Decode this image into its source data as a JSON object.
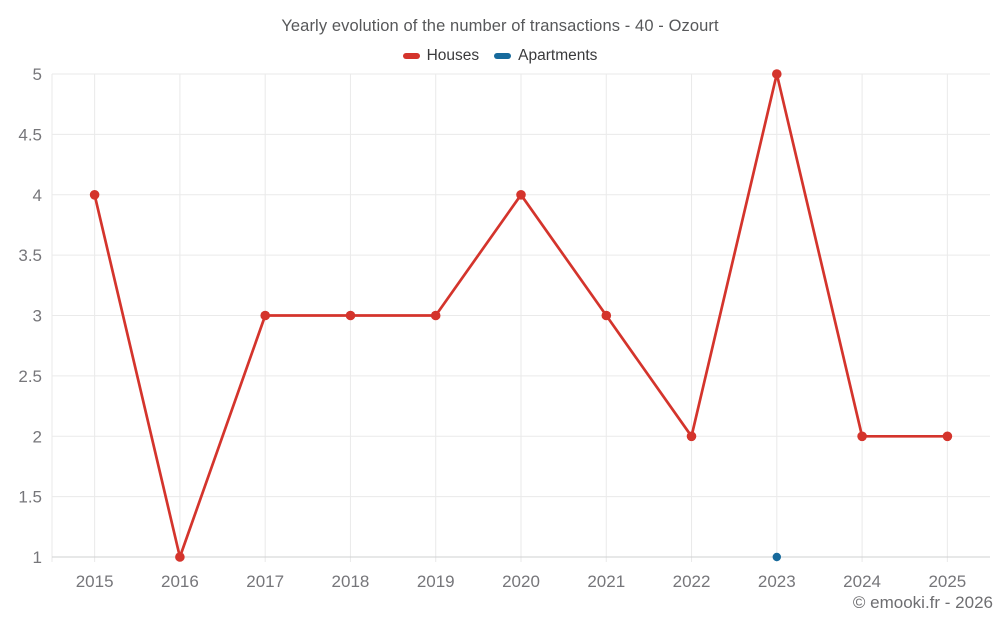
{
  "page": {
    "title": "Yearly evolution of the number of transactions - 40 - Ozourt",
    "copyright": "© emooki.fr - 2026"
  },
  "chart_data": {
    "type": "line",
    "title": "Yearly evolution of the number of transactions - 40 - Ozourt",
    "categories": [
      "2015",
      "2016",
      "2017",
      "2018",
      "2019",
      "2020",
      "2021",
      "2022",
      "2023",
      "2024",
      "2025"
    ],
    "series": [
      {
        "name": "Houses",
        "color": "#d4342c",
        "values": [
          4,
          1,
          3,
          3,
          3,
          4,
          3,
          2,
          5,
          2,
          2
        ]
      },
      {
        "name": "Apartments",
        "color": "#176a9c",
        "values": [
          null,
          null,
          null,
          null,
          null,
          null,
          null,
          null,
          1,
          null,
          null
        ]
      }
    ],
    "xlabel": "",
    "ylabel": "",
    "ylim": [
      1,
      5
    ],
    "yticks": [
      1,
      1.5,
      2,
      2.5,
      3,
      3.5,
      4,
      4.5,
      5
    ],
    "grid": true,
    "legend_position": "top"
  },
  "colors": {
    "grid": "#eaeaea",
    "axis": "#cfd0d1",
    "axis_label": "#76767a",
    "title": "#57585a",
    "legend_label": "#3a3a3c",
    "copyright": "#6e6e71",
    "background": "#ffffff"
  }
}
